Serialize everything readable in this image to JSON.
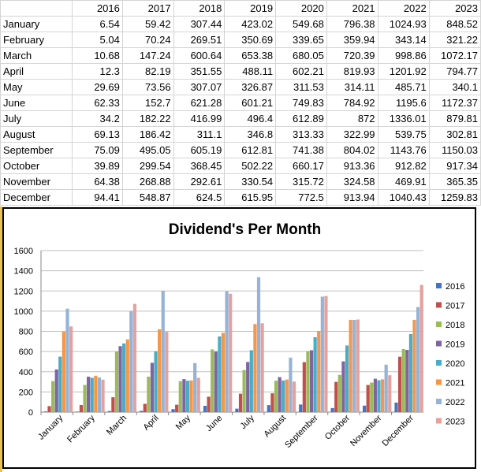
{
  "sheet": {
    "years": [
      "2016",
      "2017",
      "2018",
      "2019",
      "2020",
      "2021",
      "2022",
      "2023"
    ],
    "rows": [
      {
        "month": "January",
        "values": [
          "6.54",
          "59.42",
          "307.44",
          "423.02",
          "549.68",
          "796.38",
          "1024.93",
          "848.52"
        ]
      },
      {
        "month": "February",
        "values": [
          "5.04",
          "70.24",
          "269.51",
          "350.69",
          "339.65",
          "359.94",
          "343.14",
          "321.22"
        ]
      },
      {
        "month": "March",
        "values": [
          "10.68",
          "147.24",
          "600.64",
          "653.38",
          "680.05",
          "720.39",
          "998.86",
          "1072.17"
        ]
      },
      {
        "month": "April",
        "values": [
          "12.3",
          "82.19",
          "351.55",
          "488.11",
          "602.21",
          "819.93",
          "1201.92",
          "794.77"
        ]
      },
      {
        "month": "May",
        "values": [
          "29.69",
          "73.56",
          "307.07",
          "326.87",
          "311.53",
          "314.11",
          "485.71",
          "340.1"
        ]
      },
      {
        "month": "June",
        "values": [
          "62.33",
          "152.7",
          "621.28",
          "601.21",
          "749.83",
          "784.92",
          "1195.6",
          "1172.37"
        ]
      },
      {
        "month": "July",
        "values": [
          "34.2",
          "182.22",
          "416.99",
          "496.4",
          "612.89",
          "872",
          "1336.01",
          "879.81"
        ]
      },
      {
        "month": "August",
        "values": [
          "69.13",
          "186.42",
          "311.1",
          "346.8",
          "313.33",
          "322.99",
          "539.75",
          "302.81"
        ]
      },
      {
        "month": "September",
        "values": [
          "75.09",
          "495.05",
          "605.19",
          "612.81",
          "741.38",
          "804.02",
          "1143.76",
          "1150.03"
        ]
      },
      {
        "month": "October",
        "values": [
          "39.89",
          "299.54",
          "368.45",
          "502.22",
          "660.17",
          "913.36",
          "912.82",
          "917.34"
        ]
      },
      {
        "month": "November",
        "values": [
          "64.38",
          "268.88",
          "292.61",
          "330.54",
          "315.72",
          "324.58",
          "469.91",
          "365.35"
        ]
      },
      {
        "month": "December",
        "values": [
          "94.41",
          "548.87",
          "624.5",
          "615.95",
          "772.5",
          "913.94",
          "1040.43",
          "1259.83"
        ]
      }
    ]
  },
  "chart_data": {
    "type": "bar",
    "title": "Dividend's Per Month",
    "categories": [
      "January",
      "February",
      "March",
      "April",
      "May",
      "June",
      "July",
      "August",
      "September",
      "October",
      "November",
      "December"
    ],
    "ylim": [
      0,
      1600
    ],
    "yticks": [
      0,
      200,
      400,
      600,
      800,
      1000,
      1200,
      1400,
      1600
    ],
    "grid": true,
    "legend": "right",
    "series": [
      {
        "name": "2016",
        "color": "#4472c4",
        "values": [
          6.54,
          5.04,
          10.68,
          12.3,
          29.69,
          62.33,
          34.2,
          69.13,
          75.09,
          39.89,
          64.38,
          94.41
        ]
      },
      {
        "name": "2017",
        "color": "#c0504d",
        "values": [
          59.42,
          70.24,
          147.24,
          82.19,
          73.56,
          152.7,
          182.22,
          186.42,
          495.05,
          299.54,
          268.88,
          548.87
        ]
      },
      {
        "name": "2018",
        "color": "#9bbb59",
        "values": [
          307.44,
          269.51,
          600.64,
          351.55,
          307.07,
          621.28,
          416.99,
          311.1,
          605.19,
          368.45,
          292.61,
          624.5
        ]
      },
      {
        "name": "2019",
        "color": "#8064a2",
        "values": [
          423.02,
          350.69,
          653.38,
          488.11,
          326.87,
          601.21,
          496.4,
          346.8,
          612.81,
          502.22,
          330.54,
          615.95
        ]
      },
      {
        "name": "2020",
        "color": "#4bacc6",
        "values": [
          549.68,
          339.65,
          680.05,
          602.21,
          311.53,
          749.83,
          612.89,
          313.33,
          741.38,
          660.17,
          315.72,
          772.5
        ]
      },
      {
        "name": "2021",
        "color": "#f79646",
        "values": [
          796.38,
          359.94,
          720.39,
          819.93,
          314.11,
          784.92,
          872,
          322.99,
          804.02,
          913.36,
          324.58,
          913.94
        ]
      },
      {
        "name": "2022",
        "color": "#95b3d7",
        "values": [
          1024.93,
          343.14,
          998.86,
          1201.92,
          485.71,
          1195.6,
          1336.01,
          539.75,
          1143.76,
          912.82,
          469.91,
          1040.43
        ]
      },
      {
        "name": "2023",
        "color": "#e6a09e",
        "values": [
          848.52,
          321.22,
          1072.17,
          794.77,
          340.1,
          1172.37,
          879.81,
          302.81,
          1150.03,
          917.34,
          365.35,
          1259.83
        ]
      }
    ]
  }
}
